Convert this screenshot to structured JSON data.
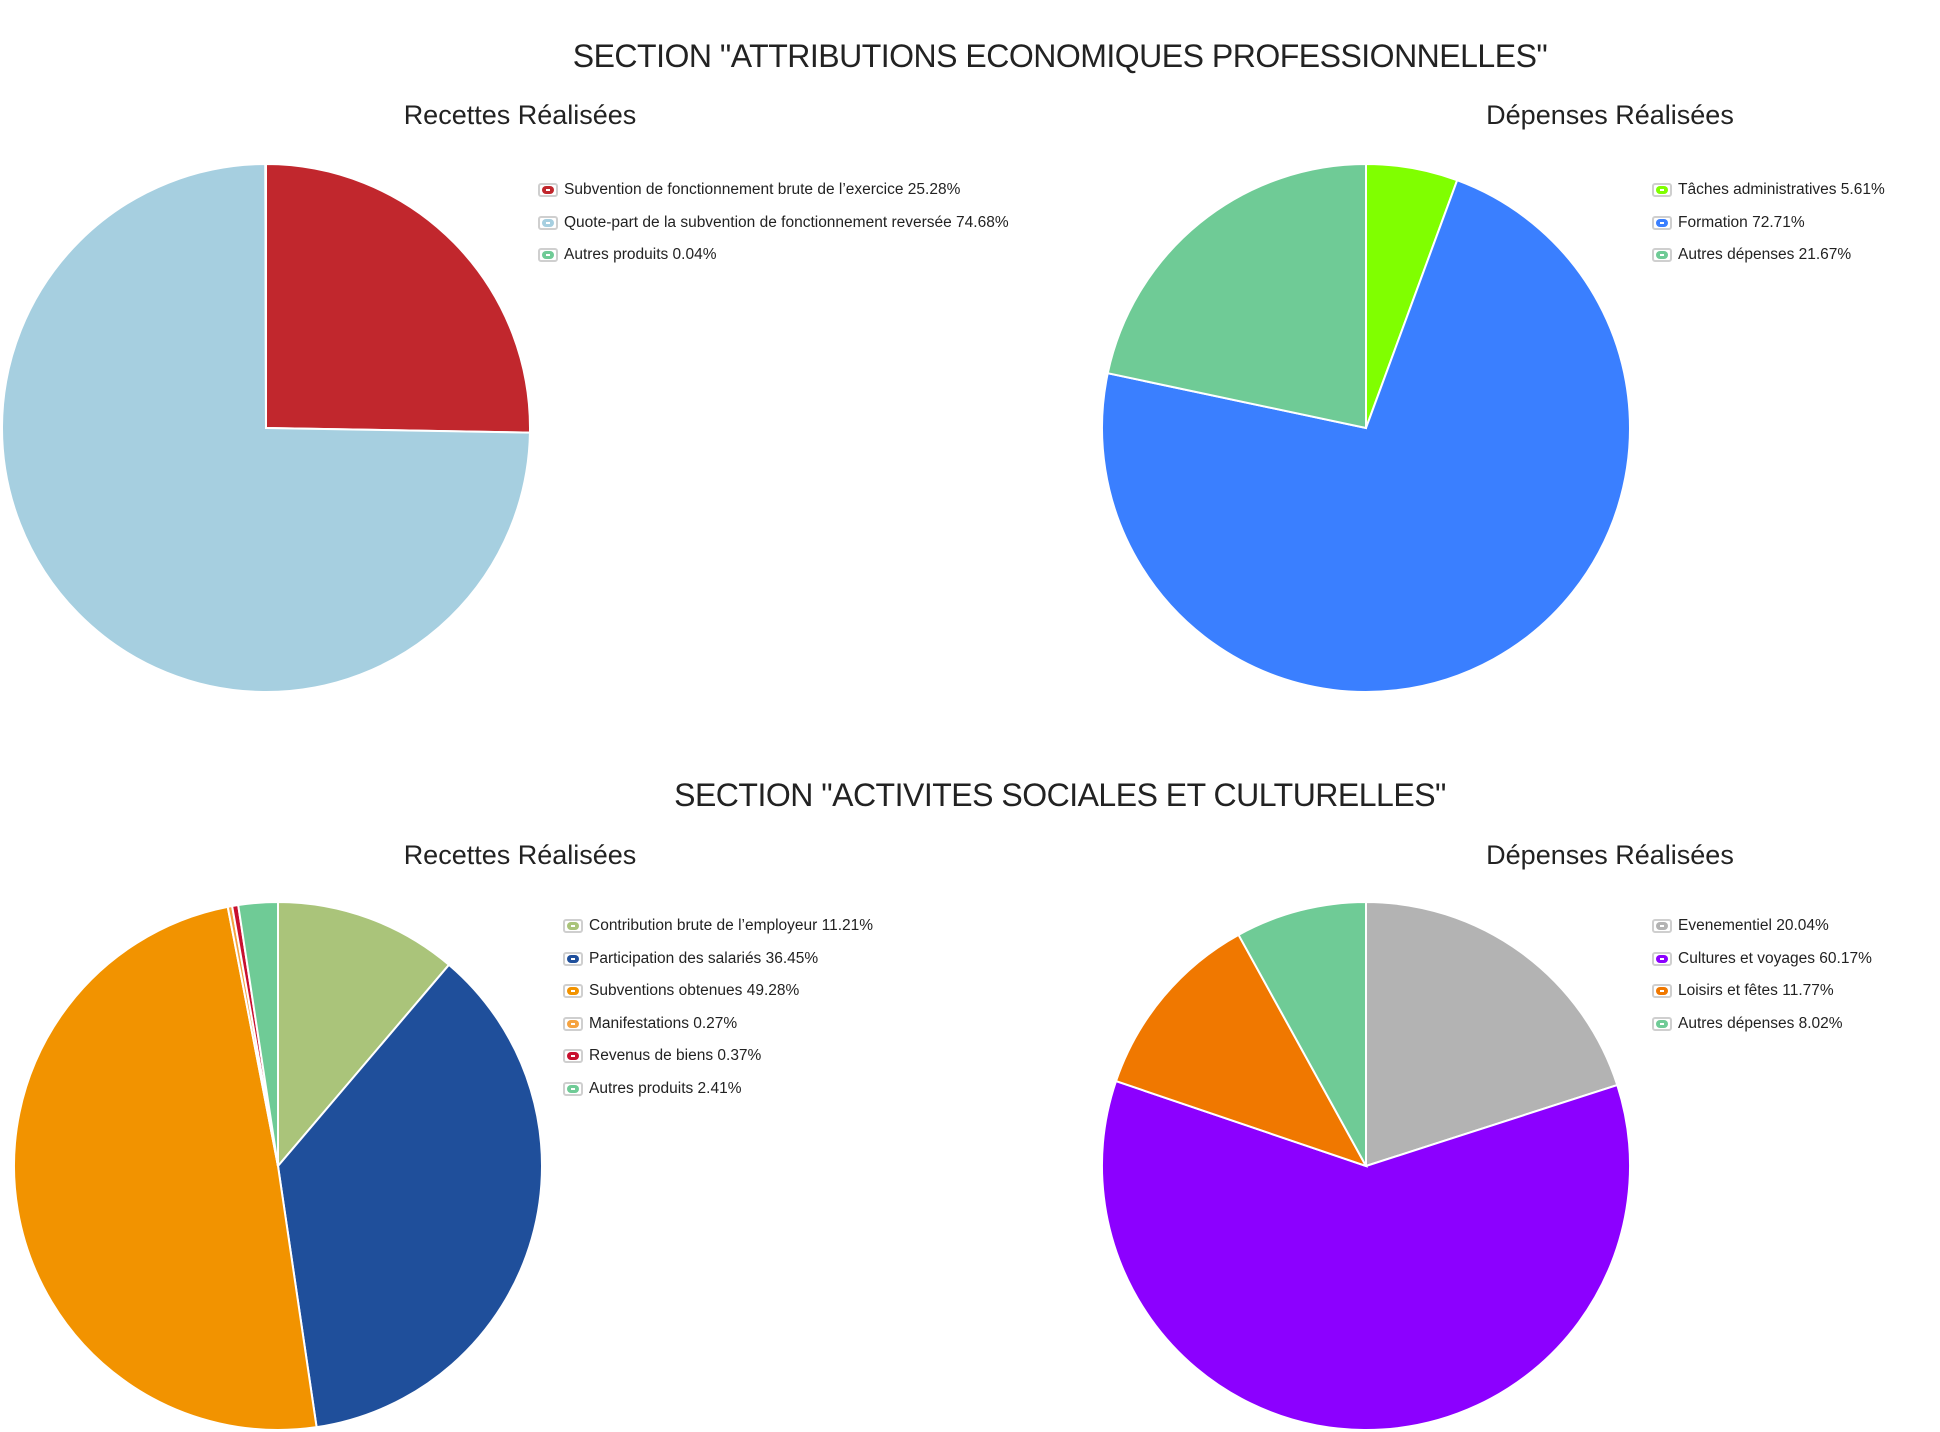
{
  "sections": [
    {
      "title": "SECTION \"ATTRIBUTIONS ECONOMIQUES PROFESSIONNELLES\"",
      "charts": [
        {
          "title": "Recettes Réalisées",
          "legend": [
            "Subvention de fonctionnement brute de l’exercice 25.28%",
            "Quote-part de la subvention de fonctionnement reversée 74.68%",
            "Autres produits 0.04%"
          ]
        },
        {
          "title": "Dépenses Réalisées",
          "legend": [
            "Tâches administratives 5.61%",
            "Formation 72.71%",
            "Autres dépenses 21.67%"
          ]
        }
      ]
    },
    {
      "title": "SECTION \"ACTIVITES SOCIALES ET CULTURELLES\"",
      "charts": [
        {
          "title": "Recettes Réalisées",
          "legend": [
            "Contribution brute de l’employeur 11.21%",
            "Participation des salariés 36.45%",
            "Subventions obtenues 49.28%",
            "Manifestations 0.27%",
            "Revenus de biens 0.37%",
            "Autres produits 2.41%"
          ]
        },
        {
          "title": "Dépenses Réalisées",
          "legend": [
            "Evenementiel 20.04%",
            "Cultures et voyages 60.17%",
            "Loisirs et fêtes 11.77%",
            "Autres dépenses 8.02%"
          ]
        }
      ]
    }
  ],
  "chart_data": [
    {
      "type": "pie",
      "title": "Recettes Réalisées",
      "categories": [
        "Subvention de fonctionnement brute de l’exercice",
        "Quote-part de la subvention de fonctionnement reversée",
        "Autres produits"
      ],
      "values": [
        25.28,
        74.68,
        0.04
      ],
      "colors": [
        "#c1272d",
        "#a6cfe0",
        "#6fcb96"
      ],
      "legend_position": "right"
    },
    {
      "type": "pie",
      "title": "Dépenses Réalisées",
      "categories": [
        "Tâches administratives",
        "Formation",
        "Autres dépenses"
      ],
      "values": [
        5.61,
        72.71,
        21.67
      ],
      "colors": [
        "#80ff00",
        "#3a7fff",
        "#6fcb96"
      ],
      "legend_position": "right"
    },
    {
      "type": "pie",
      "title": "Recettes Réalisées",
      "categories": [
        "Contribution brute de l’employeur",
        "Participation des salariés",
        "Subventions obtenues",
        "Manifestations",
        "Revenus de biens",
        "Autres produits"
      ],
      "values": [
        11.21,
        36.45,
        49.28,
        0.27,
        0.37,
        2.41
      ],
      "colors": [
        "#aac47a",
        "#1f4f9b",
        "#f29300",
        "#f5a340",
        "#c8102e",
        "#6fcb96"
      ],
      "legend_position": "right"
    },
    {
      "type": "pie",
      "title": "Dépenses Réalisées",
      "categories": [
        "Evenementiel",
        "Cultures et voyages",
        "Loisirs et fêtes",
        "Autres dépenses"
      ],
      "values": [
        20.04,
        60.17,
        11.77,
        8.02
      ],
      "colors": [
        "#b3b3b3",
        "#8c00ff",
        "#f07800",
        "#6fcb96"
      ],
      "legend_position": "right"
    }
  ]
}
